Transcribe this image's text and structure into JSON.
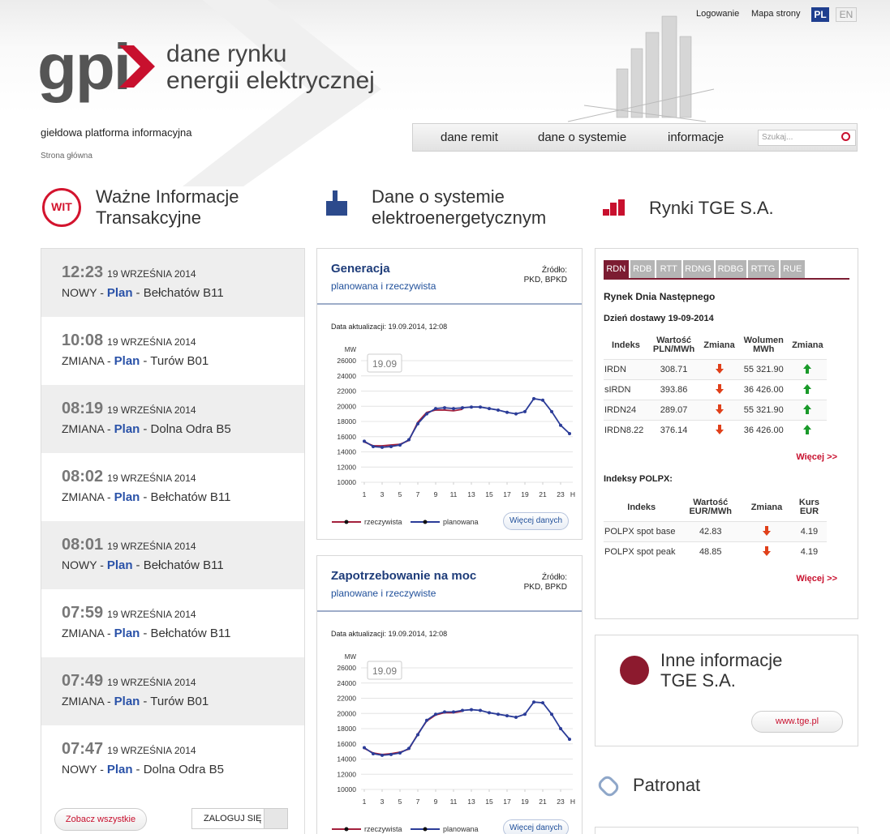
{
  "header": {
    "links": [
      "Logowanie",
      "Mapa strony"
    ],
    "languages": [
      "PL",
      "EN"
    ],
    "logo": "gpi",
    "tagline_1": "dane rynku",
    "tagline_2": "energii elektrycznej",
    "platform": "giełdowa platforma informacyjna",
    "breadcrumb": "Strona główna",
    "nav": [
      "dane remit",
      "dane o systemie",
      "informacje"
    ],
    "search_placeholder": "Szukaj..."
  },
  "wit": {
    "icon": "WIT",
    "title_1": "Ważne Informacje",
    "title_2": "Transakcyjne",
    "items": [
      {
        "time": "12:23",
        "date": "19 WRZEŚNIA 2014",
        "status": "NOWY -",
        "plan": "Plan",
        "unit": "- Bełchatów B11"
      },
      {
        "time": "10:08",
        "date": "19 WRZEŚNIA 2014",
        "status": "ZMIANA -",
        "plan": "Plan",
        "unit": "- Turów B01"
      },
      {
        "time": "08:19",
        "date": "19 WRZEŚNIA 2014",
        "status": "ZMIANA -",
        "plan": "Plan",
        "unit": "- Dolna Odra B5"
      },
      {
        "time": "08:02",
        "date": "19 WRZEŚNIA 2014",
        "status": "ZMIANA -",
        "plan": "Plan",
        "unit": "- Bełchatów B11"
      },
      {
        "time": "08:01",
        "date": "19 WRZEŚNIA 2014",
        "status": "NOWY -",
        "plan": "Plan",
        "unit": "- Bełchatów B11"
      },
      {
        "time": "07:59",
        "date": "19 WRZEŚNIA 2014",
        "status": "ZMIANA -",
        "plan": "Plan",
        "unit": "- Bełchatów B11"
      },
      {
        "time": "07:49",
        "date": "19 WRZEŚNIA 2014",
        "status": "ZMIANA -",
        "plan": "Plan",
        "unit": "- Turów B01"
      },
      {
        "time": "07:47",
        "date": "19 WRZEŚNIA 2014",
        "status": "NOWY -",
        "plan": "Plan",
        "unit": "- Dolna Odra B5"
      }
    ],
    "all_button": "Zobacz wszystkie",
    "login_button": "ZALOGUJ SIĘ"
  },
  "system": {
    "title_1": "Dane o systemie",
    "title_2": "elektroenergetycznym",
    "cards": [
      {
        "title": "Generacja",
        "subtitle": "planowana i rzeczywista",
        "source_label": "Źródło:",
        "source": "PKD, BPKD",
        "updated": "Data aktualizacji: 19.09.2014, 12:08",
        "button": "Więcej danych",
        "chart": {
          "type": "line",
          "ylabel": "MW",
          "xlabel": "H",
          "date_label": "19.09",
          "x": [
            1,
            2,
            3,
            4,
            5,
            6,
            7,
            8,
            9,
            10,
            11,
            12,
            13,
            14,
            15,
            16,
            17,
            18,
            19,
            20,
            21,
            22,
            23,
            24
          ],
          "xlim": [
            1,
            24
          ],
          "xticks": [
            1,
            3,
            5,
            7,
            9,
            11,
            13,
            15,
            17,
            19,
            21,
            23
          ],
          "ylim": [
            10000,
            26000
          ],
          "yticks": [
            10000,
            12000,
            14000,
            16000,
            18000,
            20000,
            22000,
            24000,
            26000
          ],
          "grid": true,
          "series": [
            {
              "name": "rzeczywista",
              "color": "#a3203c",
              "values": [
                15300,
                14800,
                14800,
                14900,
                15000,
                15500,
                17900,
                19200,
                19500,
                19500,
                19400,
                19600,
                null,
                null,
                null,
                null,
                null,
                null,
                null,
                null,
                null,
                null,
                null,
                null
              ]
            },
            {
              "name": "planowana",
              "color": "#2b3c98",
              "values": [
                15400,
                14700,
                14600,
                14700,
                14900,
                15600,
                17700,
                19000,
                19700,
                19800,
                19700,
                19800,
                19900,
                19900,
                19700,
                19500,
                19200,
                19000,
                19300,
                21000,
                20800,
                19300,
                17500,
                16400
              ]
            }
          ]
        }
      },
      {
        "title": "Zapotrzebowanie na moc",
        "subtitle": "planowane i rzeczywiste",
        "source_label": "Źródło:",
        "source": "PKD, BPKD",
        "updated": "Data aktualizacji: 19.09.2014, 12:08",
        "button": "Więcej danych",
        "chart": {
          "type": "line",
          "ylabel": "MW",
          "xlabel": "H",
          "date_label": "19.09",
          "x": [
            1,
            2,
            3,
            4,
            5,
            6,
            7,
            8,
            9,
            10,
            11,
            12,
            13,
            14,
            15,
            16,
            17,
            18,
            19,
            20,
            21,
            22,
            23,
            24
          ],
          "xlim": [
            1,
            24
          ],
          "xticks": [
            1,
            3,
            5,
            7,
            9,
            11,
            13,
            15,
            17,
            19,
            21,
            23
          ],
          "ylim": [
            10000,
            26000
          ],
          "yticks": [
            10000,
            12000,
            14000,
            16000,
            18000,
            20000,
            22000,
            24000,
            26000
          ],
          "grid": true,
          "series": [
            {
              "name": "rzeczywista",
              "color": "#a3203c",
              "values": [
                15400,
                14800,
                14600,
                14700,
                14900,
                15300,
                17300,
                19000,
                19800,
                20100,
                20100,
                20300,
                null,
                null,
                null,
                null,
                null,
                null,
                null,
                null,
                null,
                null,
                null,
                null
              ]
            },
            {
              "name": "planowana",
              "color": "#2b3c98",
              "values": [
                15500,
                14700,
                14500,
                14600,
                14800,
                15400,
                17200,
                19100,
                19900,
                20200,
                20200,
                20400,
                20500,
                20400,
                20100,
                19900,
                19700,
                19500,
                19900,
                21500,
                21400,
                19900,
                18000,
                16600
              ]
            }
          ]
        }
      }
    ]
  },
  "tge": {
    "title": "Rynki TGE S.A.",
    "tabs": [
      "RDN",
      "RDB",
      "RTT",
      "RDNG",
      "RDBG",
      "RTTG",
      "RUE"
    ],
    "market": "Rynek Dnia Następnego",
    "delivery": "Dzień dostawy 19-09-2014",
    "table1": {
      "headers": [
        "Indeks",
        "Wartość PLN/MWh",
        "Zmiana",
        "Wolumen MWh",
        "Zmiana"
      ],
      "rows": [
        [
          "IRDN",
          "308.71",
          "55 321.90"
        ],
        [
          "sIRDN",
          "393.86",
          "36 426.00"
        ],
        [
          "IRDN24",
          "289.07",
          "55 321.90"
        ],
        [
          "IRDN8.22",
          "376.14",
          "36 426.00"
        ]
      ]
    },
    "more": "Więcej >>",
    "polpx_title": "Indeksy POLPX:",
    "table2": {
      "headers": [
        "Indeks",
        "Wartość EUR/MWh",
        "Zmiana",
        "Kurs EUR"
      ],
      "rows": [
        [
          "POLPX spot base",
          "42.83",
          "4.19"
        ],
        [
          "POLPX spot peak",
          "48.85",
          "4.19"
        ]
      ]
    },
    "more2": "Więcej >>"
  },
  "other": {
    "title_1": "Inne informacje",
    "title_2": "TGE S.A.",
    "button": "www.tge.pl"
  },
  "patronat": {
    "title": "Patronat"
  }
}
